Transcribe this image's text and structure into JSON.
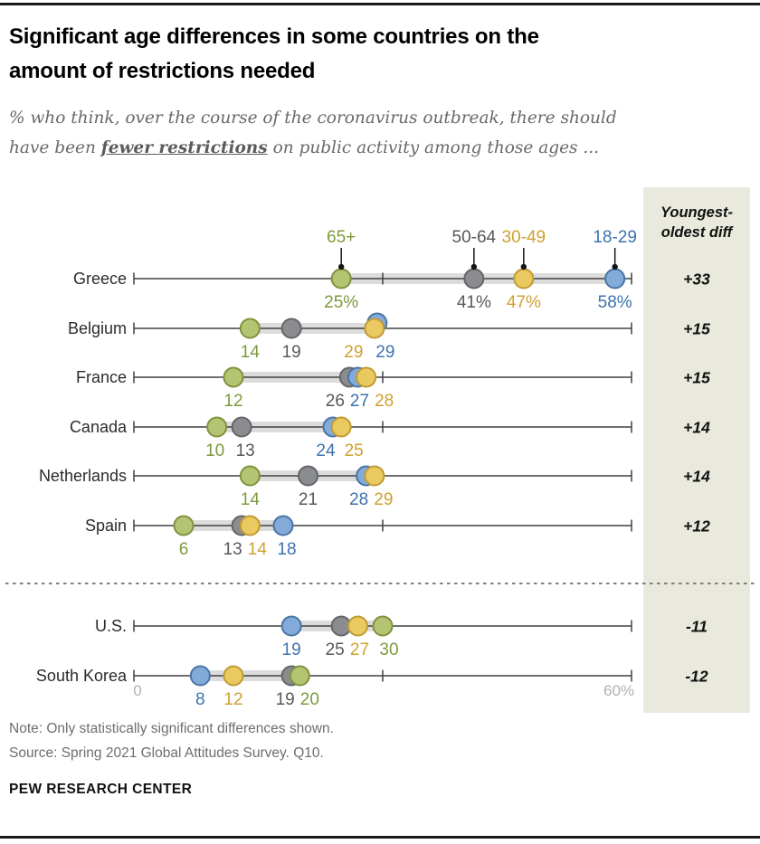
{
  "header": {
    "title_line1": "Significant age differences in some countries on the",
    "title_line2": "amount of restrictions needed",
    "subtitle_prefix": "% who think, over the course of the coronavirus outbreak, there should have been ",
    "subtitle_emphasis": "fewer restrictions",
    "subtitle_suffix": " on public activity among those ages ..."
  },
  "chart_data": {
    "type": "scatter",
    "subtype": "dot-plot",
    "title": "Significant age differences in some countries on the amount of restrictions needed",
    "axis": {
      "min": 0,
      "max": 60,
      "min_label": "0",
      "max_label": "60%",
      "mid_tick": 30,
      "grid": false
    },
    "diff_header": [
      "Youngest-",
      "oldest diff"
    ],
    "legend_position": "above-first-row",
    "age_groups": [
      {
        "id": "65plus",
        "label": "65+",
        "fill": "#b3c573",
        "stroke": "#81913d",
        "text": "#7d9a3d"
      },
      {
        "id": "50-64",
        "label": "50-64",
        "fill": "#8b8c8f",
        "stroke": "#646569",
        "text": "#57585c"
      },
      {
        "id": "30-49",
        "label": "30-49",
        "fill": "#eac961",
        "stroke": "#c09c33",
        "text": "#cfa12f"
      },
      {
        "id": "18-29",
        "label": "18-29",
        "fill": "#82abd9",
        "stroke": "#4a74a5",
        "text": "#3d73ad"
      }
    ],
    "style": {
      "axis": "#404040",
      "band": "#dcdcdc",
      "panel_bg": "#eae9dd",
      "divider": "#808080",
      "leader": "#151515"
    },
    "rows": [
      {
        "country": "Greece",
        "section": "top",
        "legend": true,
        "diff": "+33",
        "points": [
          {
            "g": "65plus",
            "v": 25,
            "label": "25%"
          },
          {
            "g": "50-64",
            "v": 41,
            "label": "41%"
          },
          {
            "g": "30-49",
            "v": 47,
            "label": "47%"
          },
          {
            "g": "18-29",
            "v": 58,
            "label": "58%"
          }
        ]
      },
      {
        "country": "Belgium",
        "section": "top",
        "diff": "+15",
        "points": [
          {
            "g": "65plus",
            "v": 14,
            "label": "14"
          },
          {
            "g": "50-64",
            "v": 19,
            "label": "19"
          },
          {
            "g": "18-29",
            "v": 29,
            "label": "29",
            "ldx": 12,
            "ddx": 3,
            "ddy": -6
          },
          {
            "g": "30-49",
            "v": 29,
            "label": "29",
            "ldx": -23
          }
        ]
      },
      {
        "country": "France",
        "section": "top",
        "diff": "+15",
        "points": [
          {
            "g": "65plus",
            "v": 12,
            "label": "12"
          },
          {
            "g": "50-64",
            "v": 26,
            "label": "26",
            "ldx": -16
          },
          {
            "g": "18-29",
            "v": 27,
            "label": "27",
            "ldx": 2
          },
          {
            "g": "30-49",
            "v": 28,
            "label": "28",
            "ldx": 20
          }
        ]
      },
      {
        "country": "Canada",
        "section": "top",
        "diff": "+14",
        "points": [
          {
            "g": "65plus",
            "v": 10,
            "label": "10",
            "ldx": -2
          },
          {
            "g": "50-64",
            "v": 13,
            "label": "13",
            "ldx": 4
          },
          {
            "g": "18-29",
            "v": 24,
            "label": "24",
            "ldx": -8
          },
          {
            "g": "30-49",
            "v": 25,
            "label": "25",
            "ldx": 14
          }
        ]
      },
      {
        "country": "Netherlands",
        "section": "top",
        "diff": "+14",
        "points": [
          {
            "g": "65plus",
            "v": 14,
            "label": "14"
          },
          {
            "g": "50-64",
            "v": 21,
            "label": "21"
          },
          {
            "g": "18-29",
            "v": 28,
            "label": "28",
            "ldx": -8
          },
          {
            "g": "30-49",
            "v": 29,
            "label": "29",
            "ldx": 10
          }
        ]
      },
      {
        "country": "Spain",
        "section": "top",
        "diff": "+12",
        "points": [
          {
            "g": "65plus",
            "v": 6,
            "label": "6"
          },
          {
            "g": "50-64",
            "v": 13,
            "label": "13",
            "ldx": -10
          },
          {
            "g": "30-49",
            "v": 14,
            "label": "14",
            "ldx": 8
          },
          {
            "g": "18-29",
            "v": 18,
            "label": "18",
            "ldx": 4
          }
        ]
      },
      {
        "country": "U.S.",
        "section": "bottom",
        "diff": "-11",
        "points": [
          {
            "g": "18-29",
            "v": 19,
            "label": "19"
          },
          {
            "g": "50-64",
            "v": 25,
            "label": "25",
            "ldx": -7
          },
          {
            "g": "30-49",
            "v": 27,
            "label": "27",
            "ldx": 2
          },
          {
            "g": "65plus",
            "v": 30,
            "label": "30",
            "ldx": 7
          }
        ]
      },
      {
        "country": "South Korea",
        "section": "bottom",
        "diff": "-12",
        "points": [
          {
            "g": "18-29",
            "v": 8,
            "label": "8"
          },
          {
            "g": "30-49",
            "v": 12,
            "label": "12"
          },
          {
            "g": "50-64",
            "v": 19,
            "label": "19",
            "ldx": -7
          },
          {
            "g": "65plus",
            "v": 20,
            "label": "20",
            "ldx": 11
          }
        ]
      }
    ]
  },
  "footer": {
    "note": "Note: Only statistically significant differences shown.",
    "source": "Source: Spring 2021 Global Attitudes Survey. Q10.",
    "brand": "PEW RESEARCH CENTER"
  }
}
